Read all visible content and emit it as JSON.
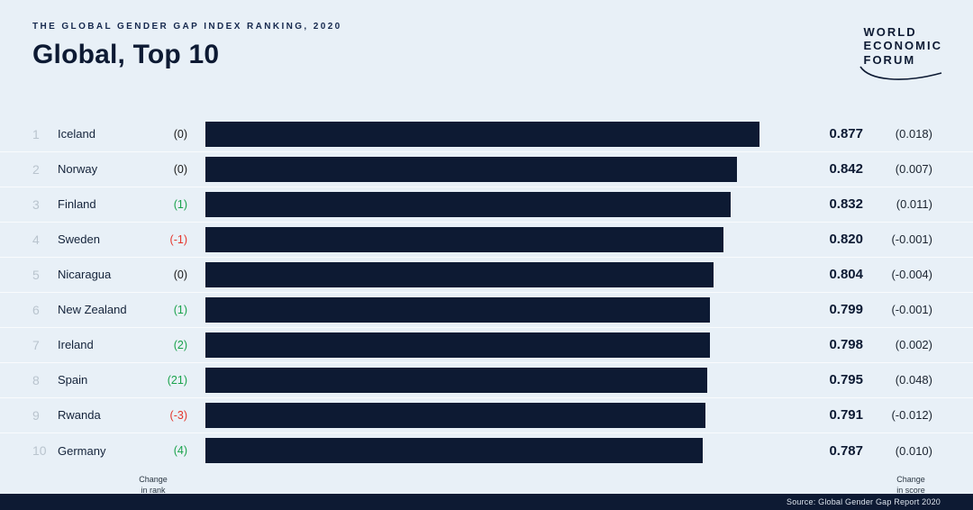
{
  "header": {
    "kicker": "THE GLOBAL GENDER GAP INDEX RANKING, 2020",
    "title": "Global, Top 10"
  },
  "logo": {
    "line1": "WORLD",
    "line2": "ECONOMIC",
    "line3": "FORUM"
  },
  "footnotes": {
    "change_in_rank": "Change\nin rank",
    "change_in_score": "Change\nin score"
  },
  "source_bar": {
    "text": "Source: Global Gender Gap Report 2020"
  },
  "colors": {
    "background": "#e8f0f7",
    "navy": "#0d1a33",
    "positive_green": "#1aa24c",
    "negative_red": "#e5352b",
    "rank_gray": "#b9c4ce"
  },
  "chart_data": {
    "type": "bar",
    "orientation": "horizontal",
    "title": "Global, Top 10",
    "subtitle": "THE GLOBAL GENDER GAP INDEX RANKING, 2020",
    "xlim": [
      0,
      0.877
    ],
    "rows": [
      {
        "rank": "1",
        "country": "Iceland",
        "rank_change": "(0)",
        "rank_change_sign": "zero",
        "score": "0.877",
        "score_change": "(0.018)"
      },
      {
        "rank": "2",
        "country": "Norway",
        "rank_change": "(0)",
        "rank_change_sign": "zero",
        "score": "0.842",
        "score_change": "(0.007)"
      },
      {
        "rank": "3",
        "country": "Finland",
        "rank_change": "(1)",
        "rank_change_sign": "up",
        "score": "0.832",
        "score_change": "(0.011)"
      },
      {
        "rank": "4",
        "country": "Sweden",
        "rank_change": "(-1)",
        "rank_change_sign": "down",
        "score": "0.820",
        "score_change": "(-0.001)"
      },
      {
        "rank": "5",
        "country": "Nicaragua",
        "rank_change": "(0)",
        "rank_change_sign": "zero",
        "score": "0.804",
        "score_change": "(-0.004)"
      },
      {
        "rank": "6",
        "country": "New Zealand",
        "rank_change": "(1)",
        "rank_change_sign": "up",
        "score": "0.799",
        "score_change": "(-0.001)"
      },
      {
        "rank": "7",
        "country": "Ireland",
        "rank_change": "(2)",
        "rank_change_sign": "up",
        "score": "0.798",
        "score_change": "(0.002)"
      },
      {
        "rank": "8",
        "country": "Spain",
        "rank_change": "(21)",
        "rank_change_sign": "up",
        "score": "0.795",
        "score_change": "(0.048)"
      },
      {
        "rank": "9",
        "country": "Rwanda",
        "rank_change": "(-3)",
        "rank_change_sign": "down",
        "score": "0.791",
        "score_change": "(-0.012)"
      },
      {
        "rank": "10",
        "country": "Germany",
        "rank_change": "(4)",
        "rank_change_sign": "up",
        "score": "0.787",
        "score_change": "(0.010)"
      }
    ]
  }
}
